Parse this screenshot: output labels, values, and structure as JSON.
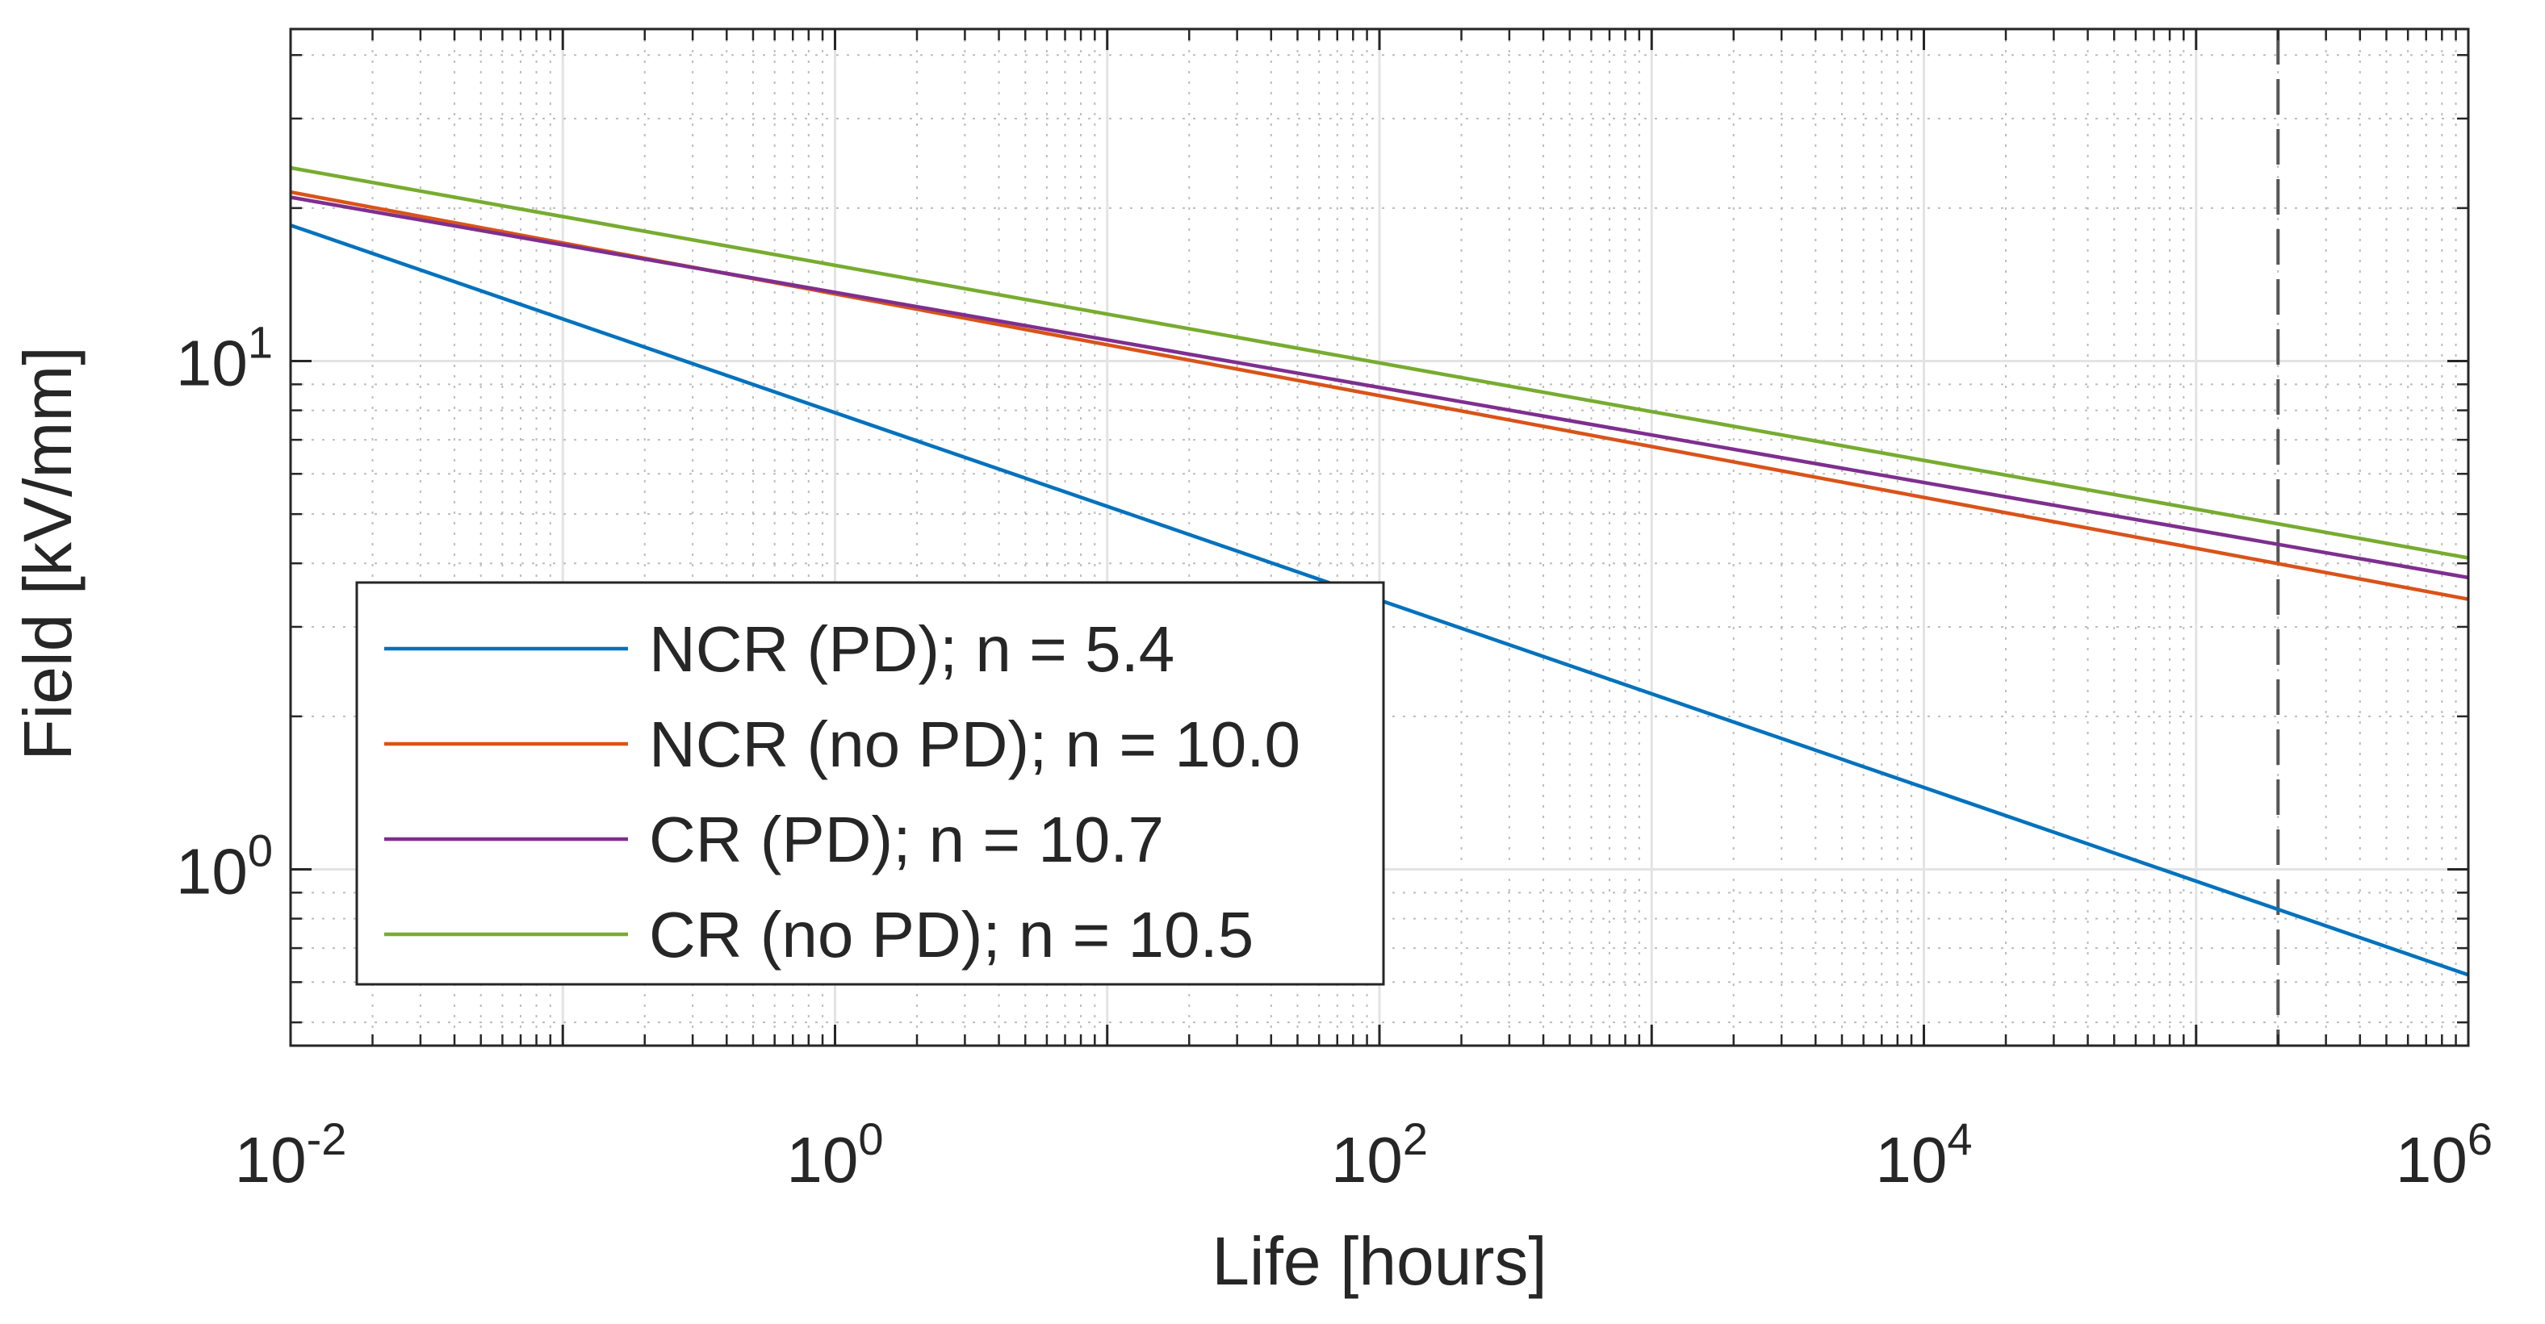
{
  "chart_data": {
    "type": "line",
    "title": "",
    "xlabel": "Life [hours]",
    "ylabel": "Field [kV/mm]",
    "xscale": "log",
    "yscale": "log",
    "xlim": [
      0.01,
      1000000
    ],
    "ylim": [
      0.45,
      45
    ],
    "grid": true,
    "minor_grid": true,
    "legend_position": "bottom-left",
    "x_ticks": [
      {
        "value": 0.01,
        "base": "10",
        "exp": "-2"
      },
      {
        "value": 1,
        "base": "10",
        "exp": "0"
      },
      {
        "value": 100,
        "base": "10",
        "exp": "2"
      },
      {
        "value": 10000,
        "base": "10",
        "exp": "4"
      },
      {
        "value": 1000000,
        "base": "10",
        "exp": "6"
      }
    ],
    "y_ticks": [
      {
        "value": 1,
        "base": "10",
        "exp": "0"
      },
      {
        "value": 10,
        "base": "10",
        "exp": "1"
      }
    ],
    "reference_line": {
      "x": 200000,
      "style": "dashed",
      "color": "#555555"
    },
    "series": [
      {
        "name": "NCR (PD); n = 5.4",
        "color": "#0072BD",
        "x": [
          0.01,
          1000000
        ],
        "y": [
          18.5,
          0.62
        ]
      },
      {
        "name": "NCR (no PD); n = 10.0",
        "color": "#D95319",
        "x": [
          0.01,
          1000000
        ],
        "y": [
          21.5,
          3.4
        ]
      },
      {
        "name": "CR (PD); n = 10.7",
        "color": "#7E2F8E",
        "x": [
          0.01,
          1000000
        ],
        "y": [
          21.0,
          3.75
        ]
      },
      {
        "name": "CR (no PD); n = 10.5",
        "color": "#77AC30",
        "x": [
          0.01,
          1000000
        ],
        "y": [
          24.0,
          4.1
        ]
      }
    ]
  }
}
